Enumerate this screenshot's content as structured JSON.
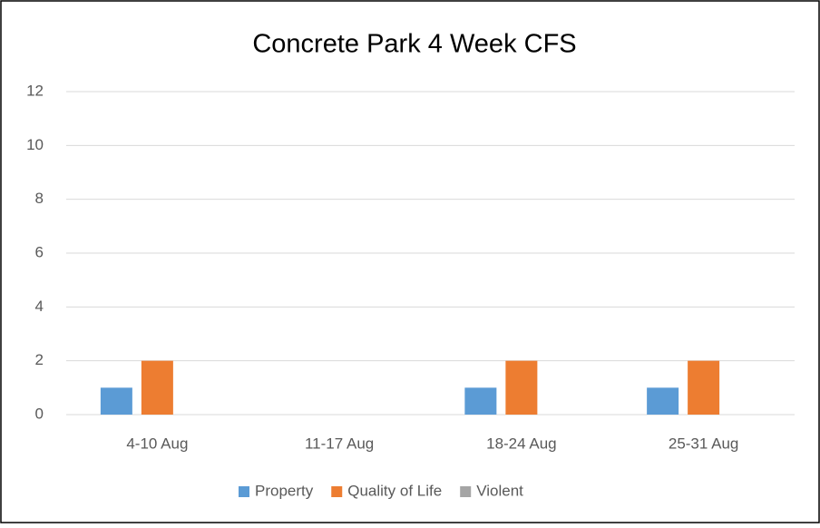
{
  "chart_data": {
    "type": "bar",
    "title": "Concrete Park 4 Week CFS",
    "categories": [
      "4-10 Aug",
      "11-17 Aug",
      "18-24 Aug",
      "25-31 Aug"
    ],
    "series": [
      {
        "name": "Property",
        "color": "#5b9bd5",
        "values": [
          1,
          0,
          1,
          1
        ]
      },
      {
        "name": "Quality of Life",
        "color": "#ed7d31",
        "values": [
          2,
          0,
          2,
          2
        ]
      },
      {
        "name": "Violent",
        "color": "#a5a5a5",
        "values": [
          0,
          0,
          0,
          0
        ]
      }
    ],
    "ylim": [
      0,
      12
    ],
    "yticks": [
      0,
      2,
      4,
      6,
      8,
      10,
      12
    ],
    "grid": true,
    "legend": "bottom"
  }
}
